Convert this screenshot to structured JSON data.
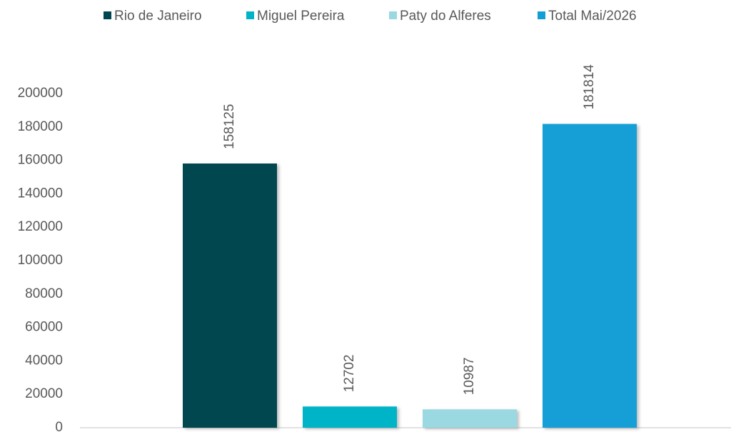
{
  "chart_data": {
    "type": "bar",
    "series": [
      {
        "name": "Rio de Janeiro",
        "color": "#004650",
        "values": [
          158125
        ]
      },
      {
        "name": "Miguel Pereira",
        "color": "#00b4c8",
        "values": [
          12702
        ]
      },
      {
        "name": "Paty do Alferes",
        "color": "#9ad8e2",
        "values": [
          10987
        ]
      },
      {
        "name": "Total Mai/2026",
        "color": "#139fd6",
        "values": [
          181814
        ]
      }
    ],
    "ylim": [
      0,
      200000
    ],
    "yticks": [
      0,
      20000,
      40000,
      60000,
      80000,
      100000,
      120000,
      140000,
      160000,
      180000,
      200000
    ],
    "grid": false,
    "legend": "top"
  }
}
